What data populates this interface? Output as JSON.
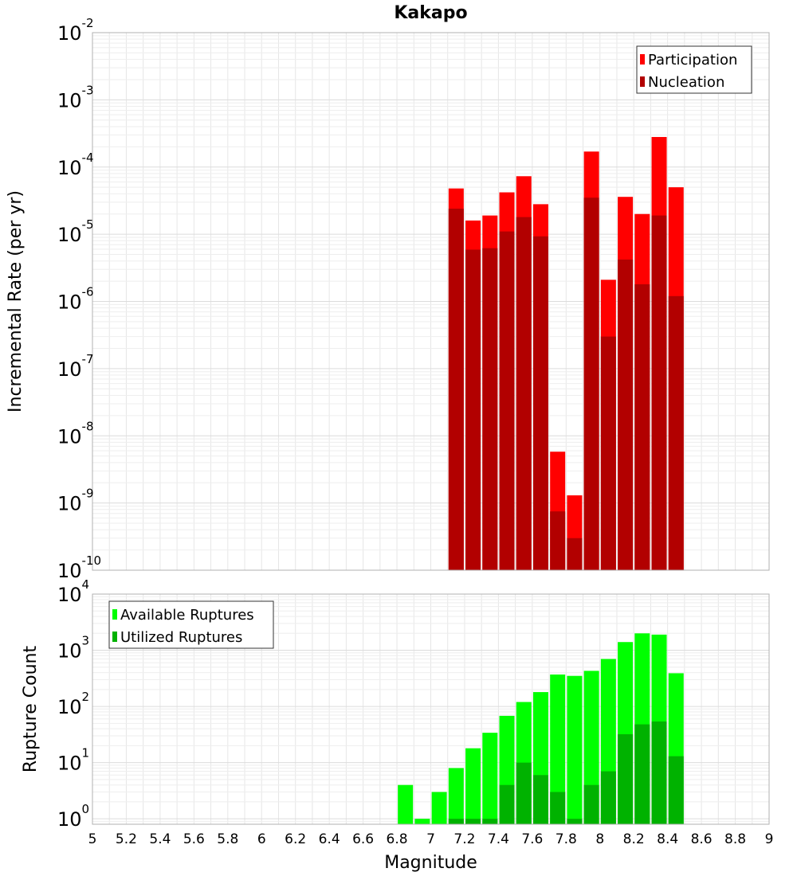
{
  "chart_data": [
    {
      "type": "bar",
      "title": "Kakapo",
      "ylabel": "Incremental Rate (per yr)",
      "y_scale": "log",
      "ylim": [
        1e-10,
        0.01
      ],
      "xlim": [
        5,
        9
      ],
      "y_ticks": [
        {
          "base": "10",
          "exp": "-10"
        },
        {
          "base": "10",
          "exp": "-9"
        },
        {
          "base": "10",
          "exp": "-8"
        },
        {
          "base": "10",
          "exp": "-7"
        },
        {
          "base": "10",
          "exp": "-6"
        },
        {
          "base": "10",
          "exp": "-5"
        },
        {
          "base": "10",
          "exp": "-4"
        },
        {
          "base": "10",
          "exp": "-3"
        },
        {
          "base": "10",
          "exp": "-2"
        }
      ],
      "grid": true,
      "legend_position": "top-right",
      "x": [
        7.15,
        7.25,
        7.35,
        7.45,
        7.55,
        7.65,
        7.75,
        7.85,
        7.95,
        8.05,
        8.15,
        8.25,
        8.35,
        8.45
      ],
      "series": [
        {
          "name": "Participation",
          "color": "#ff0000",
          "values": [
            4.8e-05,
            1.6e-05,
            1.9e-05,
            4.2e-05,
            7.3e-05,
            2.8e-05,
            5.8e-09,
            1.3e-09,
            0.00017,
            2.1e-06,
            3.6e-05,
            2e-05,
            0.00028,
            5e-05
          ]
        },
        {
          "name": "Nucleation",
          "color": "#b20000",
          "values": [
            2.4e-05,
            5.9e-06,
            6.2e-06,
            1.1e-05,
            1.8e-05,
            9.3e-06,
            7.5e-10,
            3e-10,
            3.5e-05,
            3e-07,
            4.2e-06,
            1.8e-06,
            1.9e-05,
            1.2e-06
          ]
        }
      ]
    },
    {
      "type": "bar",
      "xlabel": "Magnitude",
      "ylabel": "Rupture Count",
      "y_scale": "log",
      "ylim": [
        0.8,
        10000.0
      ],
      "xlim": [
        5,
        9
      ],
      "x_ticks": [
        "5",
        "5.2",
        "5.4",
        "5.6",
        "5.8",
        "6",
        "6.2",
        "6.4",
        "6.6",
        "6.8",
        "7",
        "7.2",
        "7.4",
        "7.6",
        "7.8",
        "8",
        "8.2",
        "8.4",
        "8.6",
        "8.8",
        "9"
      ],
      "y_ticks": [
        {
          "base": "10",
          "exp": "0"
        },
        {
          "base": "10",
          "exp": "1"
        },
        {
          "base": "10",
          "exp": "2"
        },
        {
          "base": "10",
          "exp": "3"
        },
        {
          "base": "10",
          "exp": "4"
        }
      ],
      "grid": true,
      "legend_position": "top-left",
      "x": [
        6.85,
        6.95,
        7.05,
        7.15,
        7.25,
        7.35,
        7.45,
        7.55,
        7.65,
        7.75,
        7.85,
        7.95,
        8.05,
        8.15,
        8.25,
        8.35,
        8.45
      ],
      "series": [
        {
          "name": "Available Ruptures",
          "color": "#00ff00",
          "values": [
            4,
            1,
            3,
            8,
            18,
            34,
            68,
            120,
            180,
            370,
            350,
            430,
            700,
            1400,
            2000,
            1900,
            390
          ]
        },
        {
          "name": "Utilized Ruptures",
          "color": "#00b200",
          "values": [
            0,
            0,
            0,
            1,
            1,
            1,
            4,
            10,
            6,
            3,
            1,
            4,
            7,
            32,
            48,
            54,
            13
          ]
        }
      ]
    }
  ]
}
